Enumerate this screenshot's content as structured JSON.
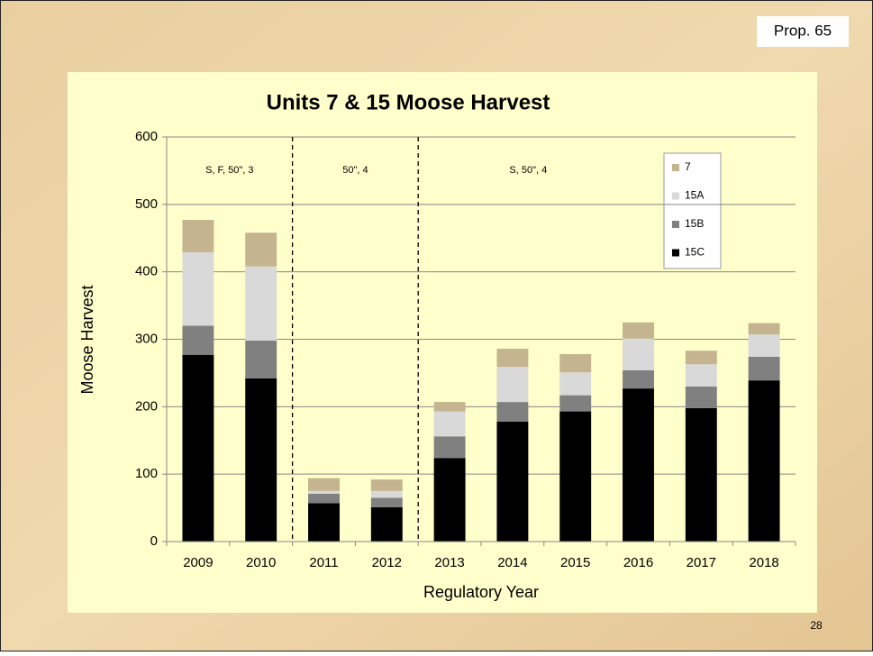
{
  "slide": {
    "label": "Prop. 65",
    "page_number": "28"
  },
  "chart_data": {
    "type": "stacked_bar",
    "title": "Units 7 & 15 Moose Harvest",
    "x_label": "Regulatory Year",
    "y_label": "Moose Harvest",
    "categories": [
      "2009",
      "2010",
      "2011",
      "2012",
      "2013",
      "2014",
      "2015",
      "2016",
      "2017",
      "2018"
    ],
    "series": [
      {
        "name": "15C",
        "color": "#000000",
        "values": [
          277,
          242,
          57,
          51,
          124,
          178,
          193,
          227,
          198,
          239
        ]
      },
      {
        "name": "15B",
        "color": "#808080",
        "values": [
          43,
          56,
          14,
          14,
          32,
          29,
          24,
          27,
          32,
          35
        ]
      },
      {
        "name": "15A",
        "color": "#d9d9d9",
        "values": [
          109,
          110,
          4,
          10,
          37,
          52,
          34,
          47,
          33,
          33
        ]
      },
      {
        "name": "7",
        "color": "#c4b48f",
        "values": [
          48,
          50,
          19,
          17,
          14,
          27,
          27,
          24,
          20,
          17
        ]
      }
    ],
    "annotations": [
      "S, F, 50\", 3",
      "50\", 4",
      "S, 50\", 4"
    ],
    "ylim": [
      0,
      600
    ],
    "yticks": [
      0,
      100,
      200,
      300,
      400,
      500,
      600
    ],
    "grid": true
  }
}
